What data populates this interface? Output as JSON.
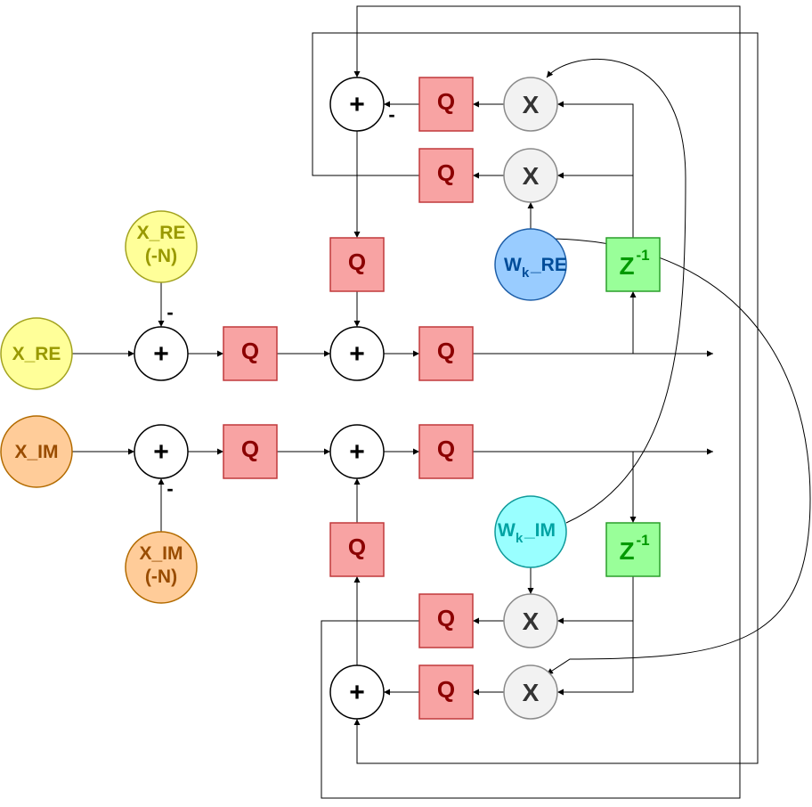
{
  "labels": {
    "q": "Q",
    "plus": "+",
    "times": "X",
    "minus": "-",
    "z": "Z",
    "z_exp": "-1",
    "w": "W",
    "w_sub": "k",
    "w_re_suffix": "_RE",
    "w_im_suffix": "_IM",
    "x_re": "X_RE",
    "x_im": "X_IM",
    "x_re_n_line1": "X_RE",
    "x_re_n_line2": "(-N)",
    "x_im_n_line1": "X_IM",
    "x_im_n_line2": "(-N)"
  },
  "colors": {
    "q_fill": "#f8a3a3",
    "q_stroke": "#c0393b",
    "q_text": "#8b0000",
    "mult_fill": "#f2f2f2",
    "mult_stroke": "#8a8a8a",
    "z_fill": "#99ff99",
    "z_stroke": "#2a9d2a",
    "z_text": "#009900",
    "w_re_fill": "#99ccff",
    "w_re_stroke": "#1f5fa8",
    "w_re_text": "#004c99",
    "w_im_fill": "#99ffff",
    "w_im_stroke": "#0e9a9a",
    "w_im_text": "#00a3a3",
    "x_re_fill": "#ffff99",
    "x_re_stroke": "#a3a31f",
    "x_re_text": "#999900",
    "x_im_fill": "#ffcc99",
    "x_im_stroke": "#b36b00",
    "x_im_text": "#994c00"
  }
}
